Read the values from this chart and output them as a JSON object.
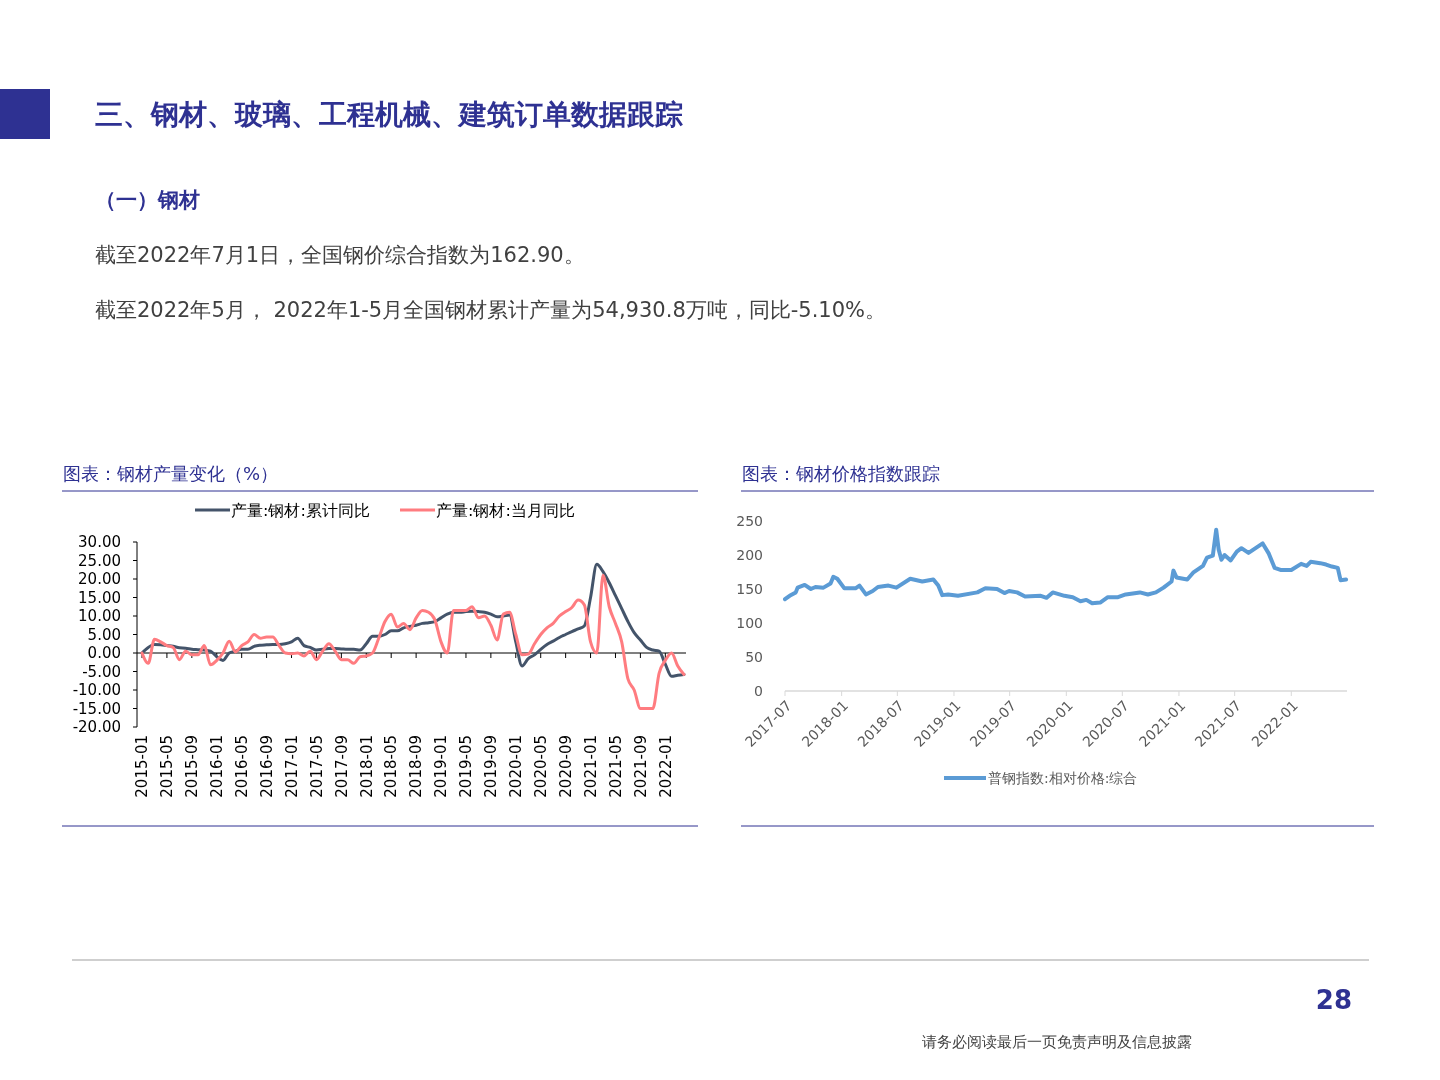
{
  "chart_data": [
    {
      "type": "line",
      "title": "图表：钢材产量变化（%）",
      "annotations": [
        "三、钢材、玻璃、工程机械、建筑订单数据跟踪",
        "（一）钢材",
        "截至2022年7月1日，全国钢价综合指数为162.90。",
        "截至2022年5月，  2022年1-5月全国钢材累计产量为54,930.8万吨，同比-5.10%。",
        "28",
        "请务必阅读最后一页免责声明及信息披露"
      ],
      "categories": [
        "2015-01",
        null,
        null,
        null,
        "2015-05",
        null,
        null,
        null,
        "2015-09",
        null,
        null,
        null,
        "2016-01",
        null,
        null,
        null,
        "2016-05",
        null,
        null,
        null,
        "2016-09",
        null,
        null,
        null,
        "2017-01",
        null,
        null,
        null,
        "2017-05",
        null,
        null,
        null,
        "2017-09",
        null,
        null,
        null,
        "2018-01",
        null,
        null,
        null,
        "2018-05",
        null,
        null,
        null,
        "2018-09",
        null,
        null,
        null,
        "2019-01",
        null,
        null,
        null,
        "2019-05",
        null,
        null,
        null,
        "2019-09",
        null,
        null,
        null,
        "2020-01",
        null,
        null,
        null,
        "2020-05",
        null,
        null,
        null,
        "2020-09",
        null,
        null,
        null,
        "2021-01",
        null,
        null,
        null,
        "2021-05",
        null,
        null,
        null,
        "2021-09",
        null,
        null,
        null,
        "2022-01",
        null,
        null,
        null
      ],
      "series": [
        {
          "name": "产量:钢材:累计同比",
          "color": "#44546a",
          "values": [
            0,
            1.5,
            2.3,
            2.2,
            2.0,
            1.8,
            1.4,
            1.3,
            1.0,
            0.9,
            0.8,
            0.5,
            -1.0,
            -2.0,
            0.0,
            0.5,
            1.0,
            1.0,
            1.8,
            2.1,
            2.2,
            2.3,
            2.3,
            2.5,
            3.0,
            4.0,
            2.0,
            1.5,
            0.8,
            1.0,
            1.2,
            1.2,
            1.1,
            1.0,
            1.0,
            0.8,
            2.5,
            4.5,
            4.5,
            5.0,
            6.0,
            6.0,
            6.8,
            7.2,
            7.5,
            8.0,
            8.2,
            8.5,
            9.5,
            10.5,
            11.0,
            11.0,
            11.2,
            11.3,
            11.2,
            11.0,
            10.5,
            9.8,
            10.0,
            10.3,
            3.0,
            -3.5,
            -1.5,
            -0.5,
            1.0,
            2.3,
            3.2,
            4.2,
            5.0,
            5.8,
            6.5,
            7.3,
            15.0,
            24.0,
            22.0,
            19.0,
            15.5,
            12.0,
            8.5,
            5.5,
            3.5,
            1.5,
            0.8,
            0.5,
            -3.0,
            -6.3,
            -6.0,
            -5.8
          ]
        },
        {
          "name": "产量:钢材:当月同比",
          "color": "#ff7c80",
          "values": [
            0,
            -2.8,
            3.7,
            3.0,
            2.0,
            1.5,
            -1.8,
            0.5,
            -0.5,
            -0.5,
            2.0,
            -3.2,
            -2.0,
            0,
            3.2,
            0.3,
            2.0,
            3.0,
            5.0,
            4.0,
            4.3,
            4.3,
            2.0,
            0.0,
            -0.2,
            0,
            -0.8,
            0.5,
            -1.8,
            0.5,
            2.5,
            0.5,
            -1.8,
            -1.8,
            -2.8,
            -1.0,
            -0.8,
            0.0,
            4.0,
            8.5,
            10.5,
            7.0,
            8.0,
            6.3,
            9.5,
            11.5,
            11.0,
            9.0,
            3.0,
            0.0,
            11.5,
            11.5,
            11.5,
            12.5,
            9.5,
            10.0,
            7.5,
            3.5,
            10.5,
            11.0,
            5.0,
            -0.5,
            -0.3,
            2.5,
            5.0,
            6.8,
            8.0,
            10.0,
            11.2,
            12.3,
            14.3,
            13.0,
            3.0,
            0.0,
            21.0,
            12.5,
            8.0,
            3.0,
            -7.0,
            -10.0,
            -15.0,
            -15.0,
            -15.0,
            -5.5,
            -2.0,
            0.0,
            -3.5,
            -5.8
          ]
        }
      ],
      "ylim": [
        -20,
        30
      ],
      "yticks": [
        {
          "value": 30,
          "label": "30.00"
        },
        {
          "value": 25,
          "label": "25.00"
        },
        {
          "value": 20,
          "label": "20.00"
        },
        {
          "value": 15,
          "label": "15.00"
        },
        {
          "value": 10,
          "label": "10.00"
        },
        {
          "value": 5,
          "label": "5.00"
        },
        {
          "value": 0,
          "label": "0.00"
        },
        {
          "value": -5,
          "label": "-5.00"
        },
        {
          "value": -10,
          "label": "-10.00"
        },
        {
          "value": -15,
          "label": "-15.00"
        },
        {
          "value": -20,
          "label": "-20.00"
        }
      ],
      "legend": "top"
    },
    {
      "type": "line",
      "title": "图表：钢材价格指数跟踪",
      "series": [
        {
          "name": "普钢指数:相对价格:综合",
          "color": "#5b9bd5",
          "x": [
            "2017-07-01",
            "2017-07-16",
            "2017-08-05",
            "2017-08-11",
            "2017-09-03",
            "2017-09-23",
            "2017-10-08",
            "2017-11-03",
            "2017-11-26",
            "2017-12-05",
            "2017-12-18",
            "2018-01-10",
            "2018-02-15",
            "2018-02-28",
            "2018-03-21",
            "2018-04-12",
            "2018-04-29",
            "2018-06-02",
            "2018-06-28",
            "2018-08-12",
            "2018-09-20",
            "2018-10-26",
            "2018-11-11",
            "2018-11-24",
            "2018-12-13",
            "2019-01-14",
            "2019-03-18",
            "2019-04-13",
            "2019-05-21",
            "2019-06-14",
            "2019-06-29",
            "2019-07-25",
            "2019-08-20",
            "2019-10-10",
            "2019-10-29",
            "2019-11-18",
            "2019-12-26",
            "2020-01-22",
            "2020-02-16",
            "2020-03-06",
            "2020-03-25",
            "2020-04-20",
            "2020-05-15",
            "2020-06-17",
            "2020-07-12",
            "2020-08-27",
            "2020-09-22",
            "2020-10-18",
            "2020-11-12",
            "2020-12-08",
            "2020-12-14",
            "2020-12-24",
            "2021-01-28",
            "2021-02-16",
            "2021-03-20",
            "2021-04-02",
            "2021-04-21",
            "2021-05-02",
            "2021-05-10",
            "2021-05-19",
            "2021-05-29",
            "2021-06-18",
            "2021-07-08",
            "2021-07-23",
            "2021-08-15",
            "2021-09-30",
            "2021-10-20",
            "2021-11-08",
            "2021-11-27",
            "2022-01-01",
            "2022-02-02",
            "2022-02-20",
            "2022-03-05",
            "2022-04-05",
            "2022-04-24",
            "2022-05-13",
            "2022-06-01",
            "2022-06-10",
            "2022-06-28"
          ],
          "values": [
            135,
            140,
            145,
            152,
            156,
            150,
            153,
            152,
            158,
            168,
            165,
            151,
            151,
            155,
            142,
            147,
            153,
            155,
            152,
            165,
            161,
            164,
            155,
            141,
            142,
            140,
            145,
            151,
            150,
            144,
            147,
            145,
            139,
            140,
            137,
            145,
            140,
            138,
            132,
            134,
            129,
            130,
            138,
            138,
            142,
            145,
            142,
            145,
            152,
            161,
            177,
            167,
            164,
            174,
            184,
            196,
            199,
            237,
            208,
            193,
            200,
            192,
            205,
            210,
            203,
            217,
            202,
            181,
            178,
            178,
            187,
            184,
            190,
            188,
            186,
            183,
            181,
            163,
            164
          ]
        }
      ],
      "xlim": [
        "2017-07-01",
        "2022-07-01"
      ],
      "xticks": [
        "2017-07",
        "2018-01",
        "2018-07",
        "2019-01",
        "2019-07",
        "2020-01",
        "2020-07",
        "2021-01",
        "2021-07",
        "2022-01"
      ],
      "ylim": [
        0,
        250
      ],
      "yticks": [
        0,
        50,
        100,
        150,
        200,
        250
      ],
      "legend": "bottom"
    }
  ]
}
